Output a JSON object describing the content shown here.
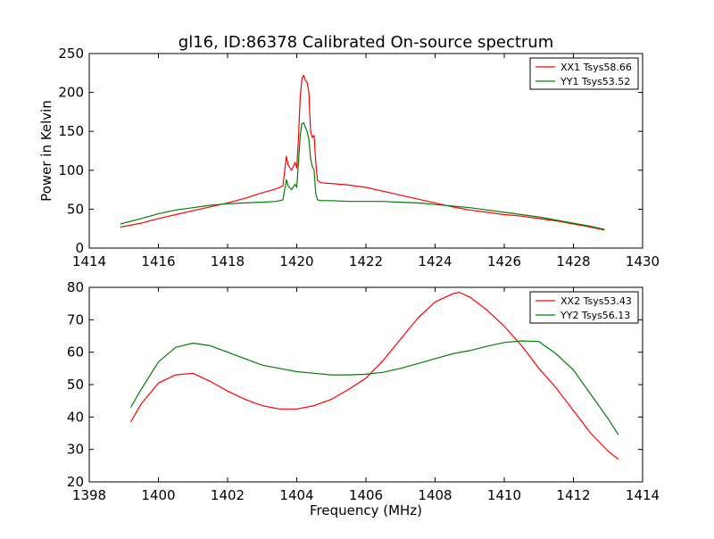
{
  "figure": {
    "title": "gl16, ID:86378 Calibrated On-source spectrum",
    "xlabel": "Frequency (MHz)"
  },
  "chart_data": [
    {
      "type": "line",
      "title": "gl16, ID:86378 Calibrated On-source spectrum",
      "xlabel": "",
      "ylabel": "Power in Kelvin",
      "xlim": [
        1414,
        1430
      ],
      "ylim": [
        0,
        250
      ],
      "xticks": [
        "1414",
        "1416",
        "1418",
        "1420",
        "1422",
        "1424",
        "1426",
        "1428",
        "1430"
      ],
      "yticks": [
        "0",
        "50",
        "100",
        "150",
        "200",
        "250"
      ],
      "grid": false,
      "legend_position": "top-right",
      "series": [
        {
          "name": "XX1 Tsys58.66",
          "color": "#ff0000",
          "x": [
            1414.9,
            1415.5,
            1416.0,
            1416.5,
            1417.0,
            1417.5,
            1418.0,
            1418.5,
            1419.0,
            1419.4,
            1419.6,
            1419.7,
            1419.75,
            1419.85,
            1419.95,
            1420.0,
            1420.05,
            1420.1,
            1420.15,
            1420.2,
            1420.25,
            1420.3,
            1420.35,
            1420.4,
            1420.45,
            1420.5,
            1420.55,
            1420.6,
            1420.7,
            1421.0,
            1421.5,
            1422.0,
            1422.5,
            1423.0,
            1423.5,
            1424.0,
            1424.5,
            1425.0,
            1425.5,
            1426.0,
            1426.5,
            1427.0,
            1427.5,
            1428.0,
            1428.5,
            1428.9
          ],
          "y": [
            27,
            32,
            38,
            43,
            48,
            53,
            58,
            64,
            71,
            76,
            80,
            118,
            107,
            100,
            110,
            103,
            140,
            195,
            218,
            222,
            215,
            213,
            200,
            150,
            142,
            145,
            110,
            87,
            84,
            83,
            81,
            78,
            73,
            68,
            63,
            58,
            53,
            49,
            46,
            43,
            41,
            38,
            35,
            31,
            27,
            23
          ]
        },
        {
          "name": "YY1 Tsys53.52",
          "color": "#007f00",
          "x": [
            1414.9,
            1415.5,
            1416.0,
            1416.5,
            1417.0,
            1417.5,
            1418.0,
            1418.5,
            1419.0,
            1419.4,
            1419.6,
            1419.7,
            1419.75,
            1419.85,
            1419.95,
            1420.0,
            1420.05,
            1420.1,
            1420.15,
            1420.2,
            1420.25,
            1420.3,
            1420.35,
            1420.4,
            1420.45,
            1420.5,
            1420.55,
            1420.6,
            1420.7,
            1421.0,
            1421.5,
            1422.0,
            1422.5,
            1423.0,
            1423.5,
            1424.0,
            1424.5,
            1425.0,
            1425.5,
            1426.0,
            1426.5,
            1427.0,
            1427.5,
            1428.0,
            1428.5,
            1428.9
          ],
          "y": [
            31,
            38,
            44,
            49,
            52,
            55,
            57,
            58,
            59,
            60,
            62,
            88,
            80,
            75,
            82,
            78,
            110,
            145,
            160,
            161,
            155,
            150,
            140,
            115,
            105,
            100,
            70,
            62,
            61,
            61,
            60,
            60,
            60,
            59,
            58,
            56,
            54,
            52,
            49,
            46,
            43,
            40,
            36,
            32,
            28,
            24
          ]
        }
      ]
    },
    {
      "type": "line",
      "title": "",
      "xlabel": "Frequency (MHz)",
      "ylabel": "",
      "xlim": [
        1398,
        1414
      ],
      "ylim": [
        20,
        80
      ],
      "xticks": [
        "1398",
        "1400",
        "1402",
        "1404",
        "1406",
        "1408",
        "1410",
        "1412",
        "1414"
      ],
      "yticks": [
        "20",
        "30",
        "40",
        "50",
        "60",
        "70",
        "80"
      ],
      "grid": false,
      "legend_position": "top-right",
      "series": [
        {
          "name": "XX2 Tsys53.43",
          "color": "#ff0000",
          "x": [
            1399.2,
            1399.5,
            1400.0,
            1400.5,
            1401.0,
            1401.5,
            1402.0,
            1402.5,
            1403.0,
            1403.5,
            1404.0,
            1404.5,
            1405.0,
            1405.5,
            1406.0,
            1406.5,
            1407.0,
            1407.5,
            1408.0,
            1408.5,
            1408.7,
            1409.0,
            1409.5,
            1410.0,
            1410.5,
            1411.0,
            1411.5,
            1412.0,
            1412.5,
            1413.0,
            1413.3
          ],
          "y": [
            38.5,
            44,
            50.5,
            53,
            53.5,
            51,
            48,
            45.5,
            43.5,
            42.5,
            42.5,
            43.5,
            45.5,
            48.5,
            52,
            57.5,
            64,
            70.5,
            75.5,
            78,
            78.5,
            77,
            73,
            68,
            62,
            55,
            49,
            42,
            35,
            29.5,
            27
          ]
        },
        {
          "name": "YY2 Tsys56.13",
          "color": "#007f00",
          "x": [
            1399.2,
            1399.5,
            1400.0,
            1400.5,
            1401.0,
            1401.5,
            1402.0,
            1402.5,
            1403.0,
            1403.5,
            1404.0,
            1404.5,
            1405.0,
            1405.5,
            1406.0,
            1406.5,
            1407.0,
            1407.5,
            1408.0,
            1408.5,
            1409.0,
            1409.5,
            1410.0,
            1410.5,
            1411.0,
            1411.5,
            1412.0,
            1412.5,
            1413.0,
            1413.3
          ],
          "y": [
            43,
            48.5,
            57,
            61.5,
            62.8,
            62,
            60,
            58,
            56,
            55,
            54,
            53.5,
            53,
            53,
            53.2,
            53.8,
            55,
            56.5,
            58,
            59.5,
            60.5,
            61.8,
            63,
            63.5,
            63.3,
            59.5,
            54.5,
            47,
            39.5,
            34.5
          ]
        }
      ]
    }
  ]
}
